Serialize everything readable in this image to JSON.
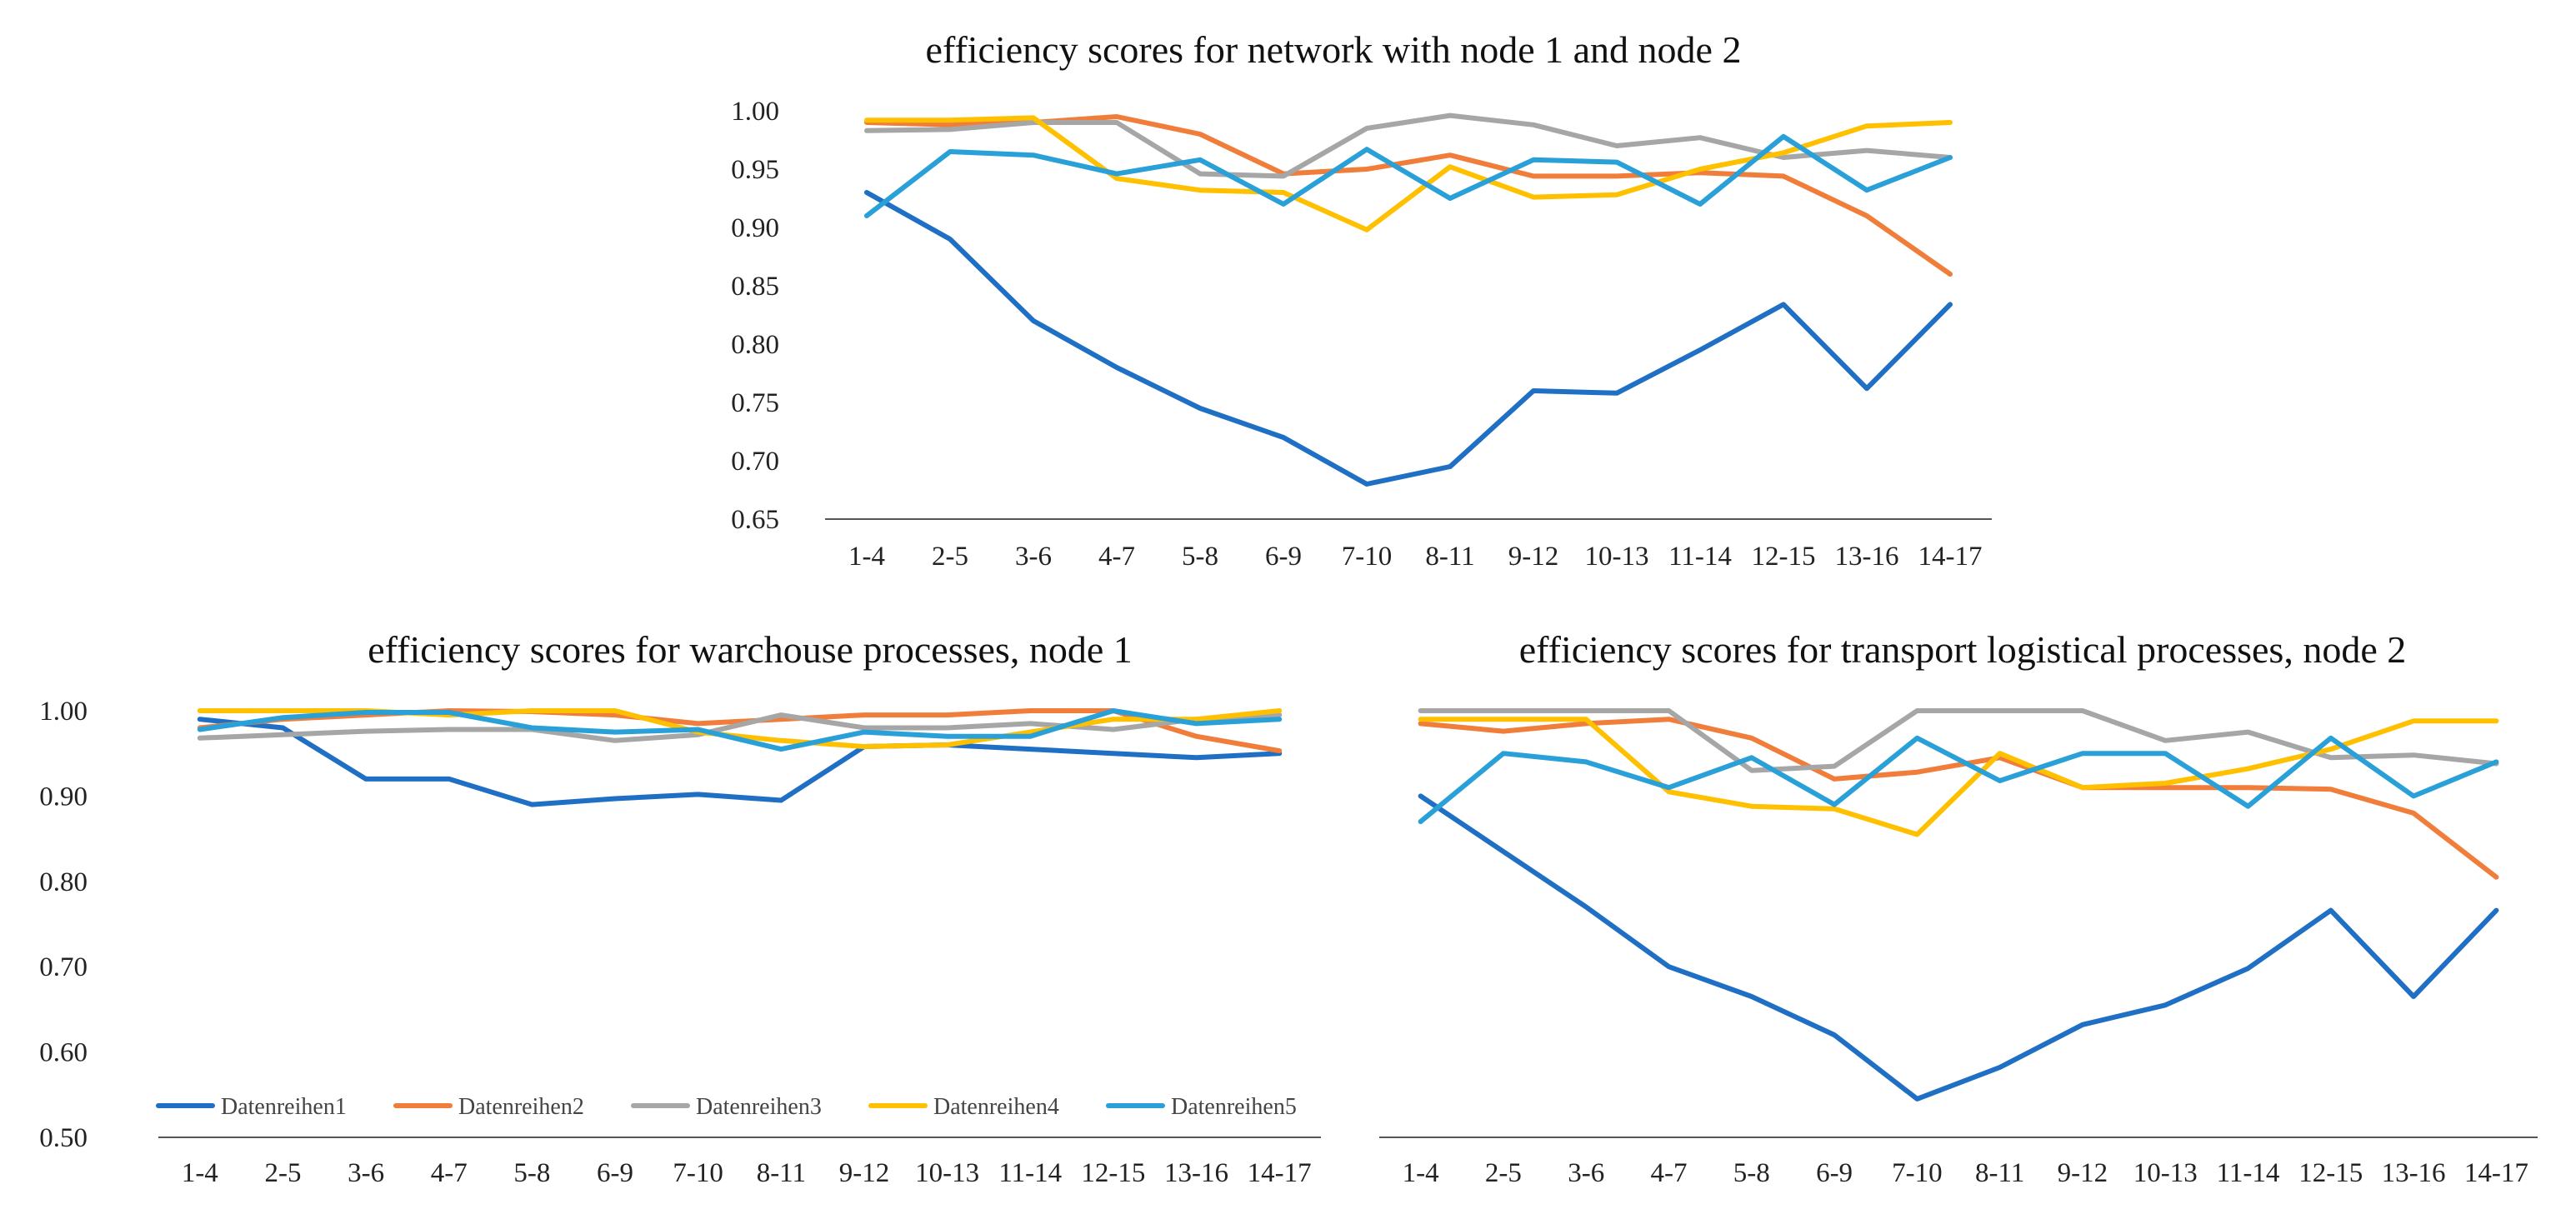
{
  "chart_data": [
    {
      "type": "line",
      "title": "efficiency scores for network with node 1 and node 2",
      "categories": [
        "1-4",
        "2-5",
        "3-6",
        "4-7",
        "5-8",
        "6-9",
        "7-10",
        "8-11",
        "9-12",
        "10-13",
        "11-14",
        "12-15",
        "13-16",
        "14-17"
      ],
      "y_tick_labels": [
        "0.65",
        "0.70",
        "0.75",
        "0.80",
        "0.85",
        "0.90",
        "0.95",
        "1.00"
      ],
      "ylim": [
        0.65,
        1.0
      ],
      "series": [
        {
          "name": "Datenreihen1",
          "color": "#1f6fc5",
          "values": [
            0.93,
            0.89,
            0.82,
            0.78,
            0.745,
            0.72,
            0.68,
            0.695,
            0.76,
            0.758,
            0.795,
            0.834,
            0.762,
            0.834
          ]
        },
        {
          "name": "Datenreihen2",
          "color": "#f07d3a",
          "values": [
            0.99,
            0.988,
            0.99,
            0.995,
            0.98,
            0.946,
            0.95,
            0.962,
            0.944,
            0.944,
            0.947,
            0.944,
            0.91,
            0.86
          ]
        },
        {
          "name": "Datenreihen3",
          "color": "#a6a6a6",
          "values": [
            0.983,
            0.984,
            0.99,
            0.99,
            0.946,
            0.944,
            0.985,
            0.996,
            0.988,
            0.97,
            0.977,
            0.96,
            0.966,
            0.96
          ]
        },
        {
          "name": "Datenreihen4",
          "color": "#ffc000",
          "values": [
            0.992,
            0.992,
            0.994,
            0.942,
            0.932,
            0.93,
            0.898,
            0.952,
            0.926,
            0.928,
            0.95,
            0.964,
            0.987,
            0.99
          ]
        },
        {
          "name": "Datenreihen5",
          "color": "#2aa0d8",
          "values": [
            0.91,
            0.965,
            0.962,
            0.946,
            0.958,
            0.92,
            0.967,
            0.925,
            0.958,
            0.956,
            0.92,
            0.978,
            0.932,
            0.96
          ]
        }
      ]
    },
    {
      "type": "line",
      "title": "efficiency scores for warchouse processes, node 1",
      "categories": [
        "1-4",
        "2-5",
        "3-6",
        "4-7",
        "5-8",
        "6-9",
        "7-10",
        "8-11",
        "9-12",
        "10-13",
        "11-14",
        "12-15",
        "13-16",
        "14-17"
      ],
      "y_tick_labels": [
        "0.50",
        "0.60",
        "0.70",
        "0.80",
        "0.90",
        "1.00"
      ],
      "ylim": [
        0.5,
        1.0
      ],
      "legend": "bottom-inside",
      "series": [
        {
          "name": "Datenreihen1",
          "color": "#1f6fc5",
          "values": [
            0.99,
            0.98,
            0.92,
            0.92,
            0.89,
            0.897,
            0.902,
            0.895,
            0.958,
            0.96,
            0.955,
            0.95,
            0.945,
            0.95
          ]
        },
        {
          "name": "Datenreihen2",
          "color": "#f07d3a",
          "values": [
            0.98,
            0.99,
            0.995,
            1.0,
            0.999,
            0.995,
            0.985,
            0.99,
            0.995,
            0.995,
            1.0,
            1.0,
            0.97,
            0.953
          ]
        },
        {
          "name": "Datenreihen3",
          "color": "#a6a6a6",
          "values": [
            0.968,
            0.972,
            0.976,
            0.978,
            0.978,
            0.965,
            0.972,
            0.995,
            0.98,
            0.98,
            0.985,
            0.978,
            0.99,
            0.995
          ]
        },
        {
          "name": "Datenreihen4",
          "color": "#ffc000",
          "values": [
            1.0,
            1.0,
            1.0,
            0.995,
            1.0,
            1.0,
            0.975,
            0.965,
            0.958,
            0.96,
            0.975,
            0.99,
            0.99,
            1.0
          ]
        },
        {
          "name": "Datenreihen5",
          "color": "#2aa0d8",
          "values": [
            0.978,
            0.992,
            0.998,
            0.998,
            0.98,
            0.975,
            0.978,
            0.955,
            0.975,
            0.97,
            0.97,
            1.0,
            0.985,
            0.99
          ]
        }
      ]
    },
    {
      "type": "line",
      "title": "efficiency scores for transport logistical processes, node 2",
      "categories": [
        "1-4",
        "2-5",
        "3-6",
        "4-7",
        "5-8",
        "6-9",
        "7-10",
        "8-11",
        "9-12",
        "10-13",
        "11-14",
        "12-15",
        "13-16",
        "14-17"
      ],
      "ylim": [
        0.5,
        1.0
      ],
      "series": [
        {
          "name": "Datenreihen1",
          "color": "#1f6fc5",
          "values": [
            0.9,
            0.835,
            0.77,
            0.7,
            0.665,
            0.62,
            0.545,
            0.582,
            0.632,
            0.655,
            0.698,
            0.766,
            0.665,
            0.766
          ]
        },
        {
          "name": "Datenreihen2",
          "color": "#f07d3a",
          "values": [
            0.985,
            0.976,
            0.985,
            0.99,
            0.968,
            0.92,
            0.928,
            0.945,
            0.91,
            0.91,
            0.91,
            0.908,
            0.88,
            0.805
          ]
        },
        {
          "name": "Datenreihen3",
          "color": "#a6a6a6",
          "values": [
            1.0,
            1.0,
            1.0,
            1.0,
            0.93,
            0.935,
            1.0,
            1.0,
            1.0,
            0.965,
            0.975,
            0.945,
            0.948,
            0.938
          ]
        },
        {
          "name": "Datenreihen4",
          "color": "#ffc000",
          "values": [
            0.99,
            0.99,
            0.99,
            0.905,
            0.888,
            0.885,
            0.855,
            0.95,
            0.91,
            0.915,
            0.932,
            0.955,
            0.988,
            0.988
          ]
        },
        {
          "name": "Datenreihen5",
          "color": "#2aa0d8",
          "values": [
            0.87,
            0.95,
            0.94,
            0.91,
            0.945,
            0.89,
            0.968,
            0.918,
            0.95,
            0.95,
            0.888,
            0.968,
            0.9,
            0.94
          ]
        }
      ]
    }
  ]
}
